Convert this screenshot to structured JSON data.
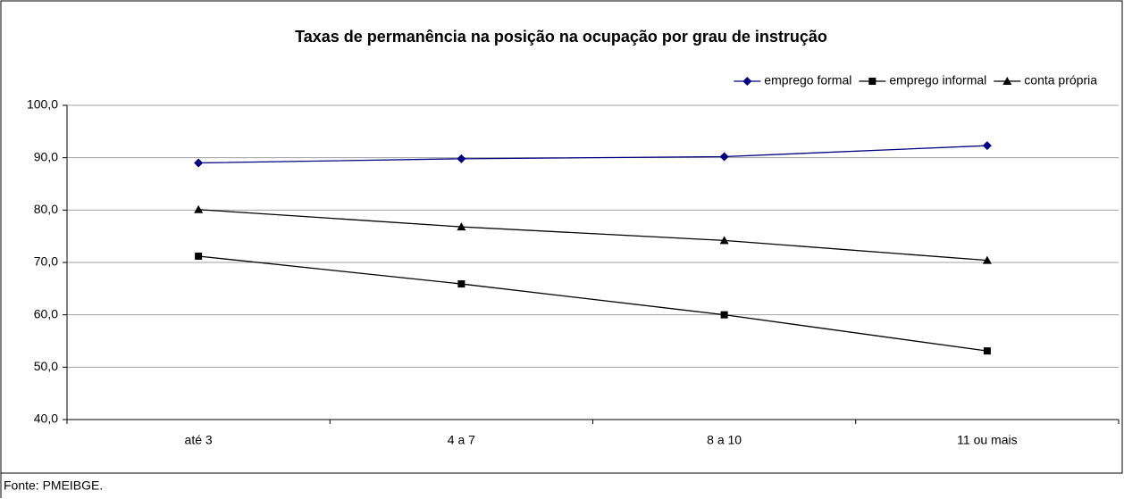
{
  "chart_data": {
    "type": "line",
    "title": "Taxas de permanência na posição na ocupação por grau de instrução",
    "categories": [
      "até 3",
      "4 a 7",
      "8 a 10",
      "11 ou mais"
    ],
    "series": [
      {
        "name": "emprego formal",
        "color": "#000080",
        "marker": "diamond",
        "values": [
          89.0,
          89.8,
          90.2,
          92.3
        ]
      },
      {
        "name": "emprego informal",
        "color": "#000000",
        "marker": "square",
        "values": [
          71.2,
          65.9,
          60.0,
          53.1
        ]
      },
      {
        "name": "conta própria",
        "color": "#000000",
        "marker": "triangle",
        "values": [
          80.1,
          76.8,
          74.2,
          70.4
        ]
      }
    ],
    "ylim": [
      40,
      100
    ],
    "yticks": [
      {
        "value": 40,
        "label": "40,0"
      },
      {
        "value": 50,
        "label": "50,0"
      },
      {
        "value": 60,
        "label": "60,0"
      },
      {
        "value": 70,
        "label": "70,0"
      },
      {
        "value": 80,
        "label": "80,0"
      },
      {
        "value": 90,
        "label": "90,0"
      },
      {
        "value": 100,
        "label": "100,0"
      }
    ],
    "grid": true,
    "legend": "top-right",
    "source": "Fonte: PMEIBGE."
  }
}
